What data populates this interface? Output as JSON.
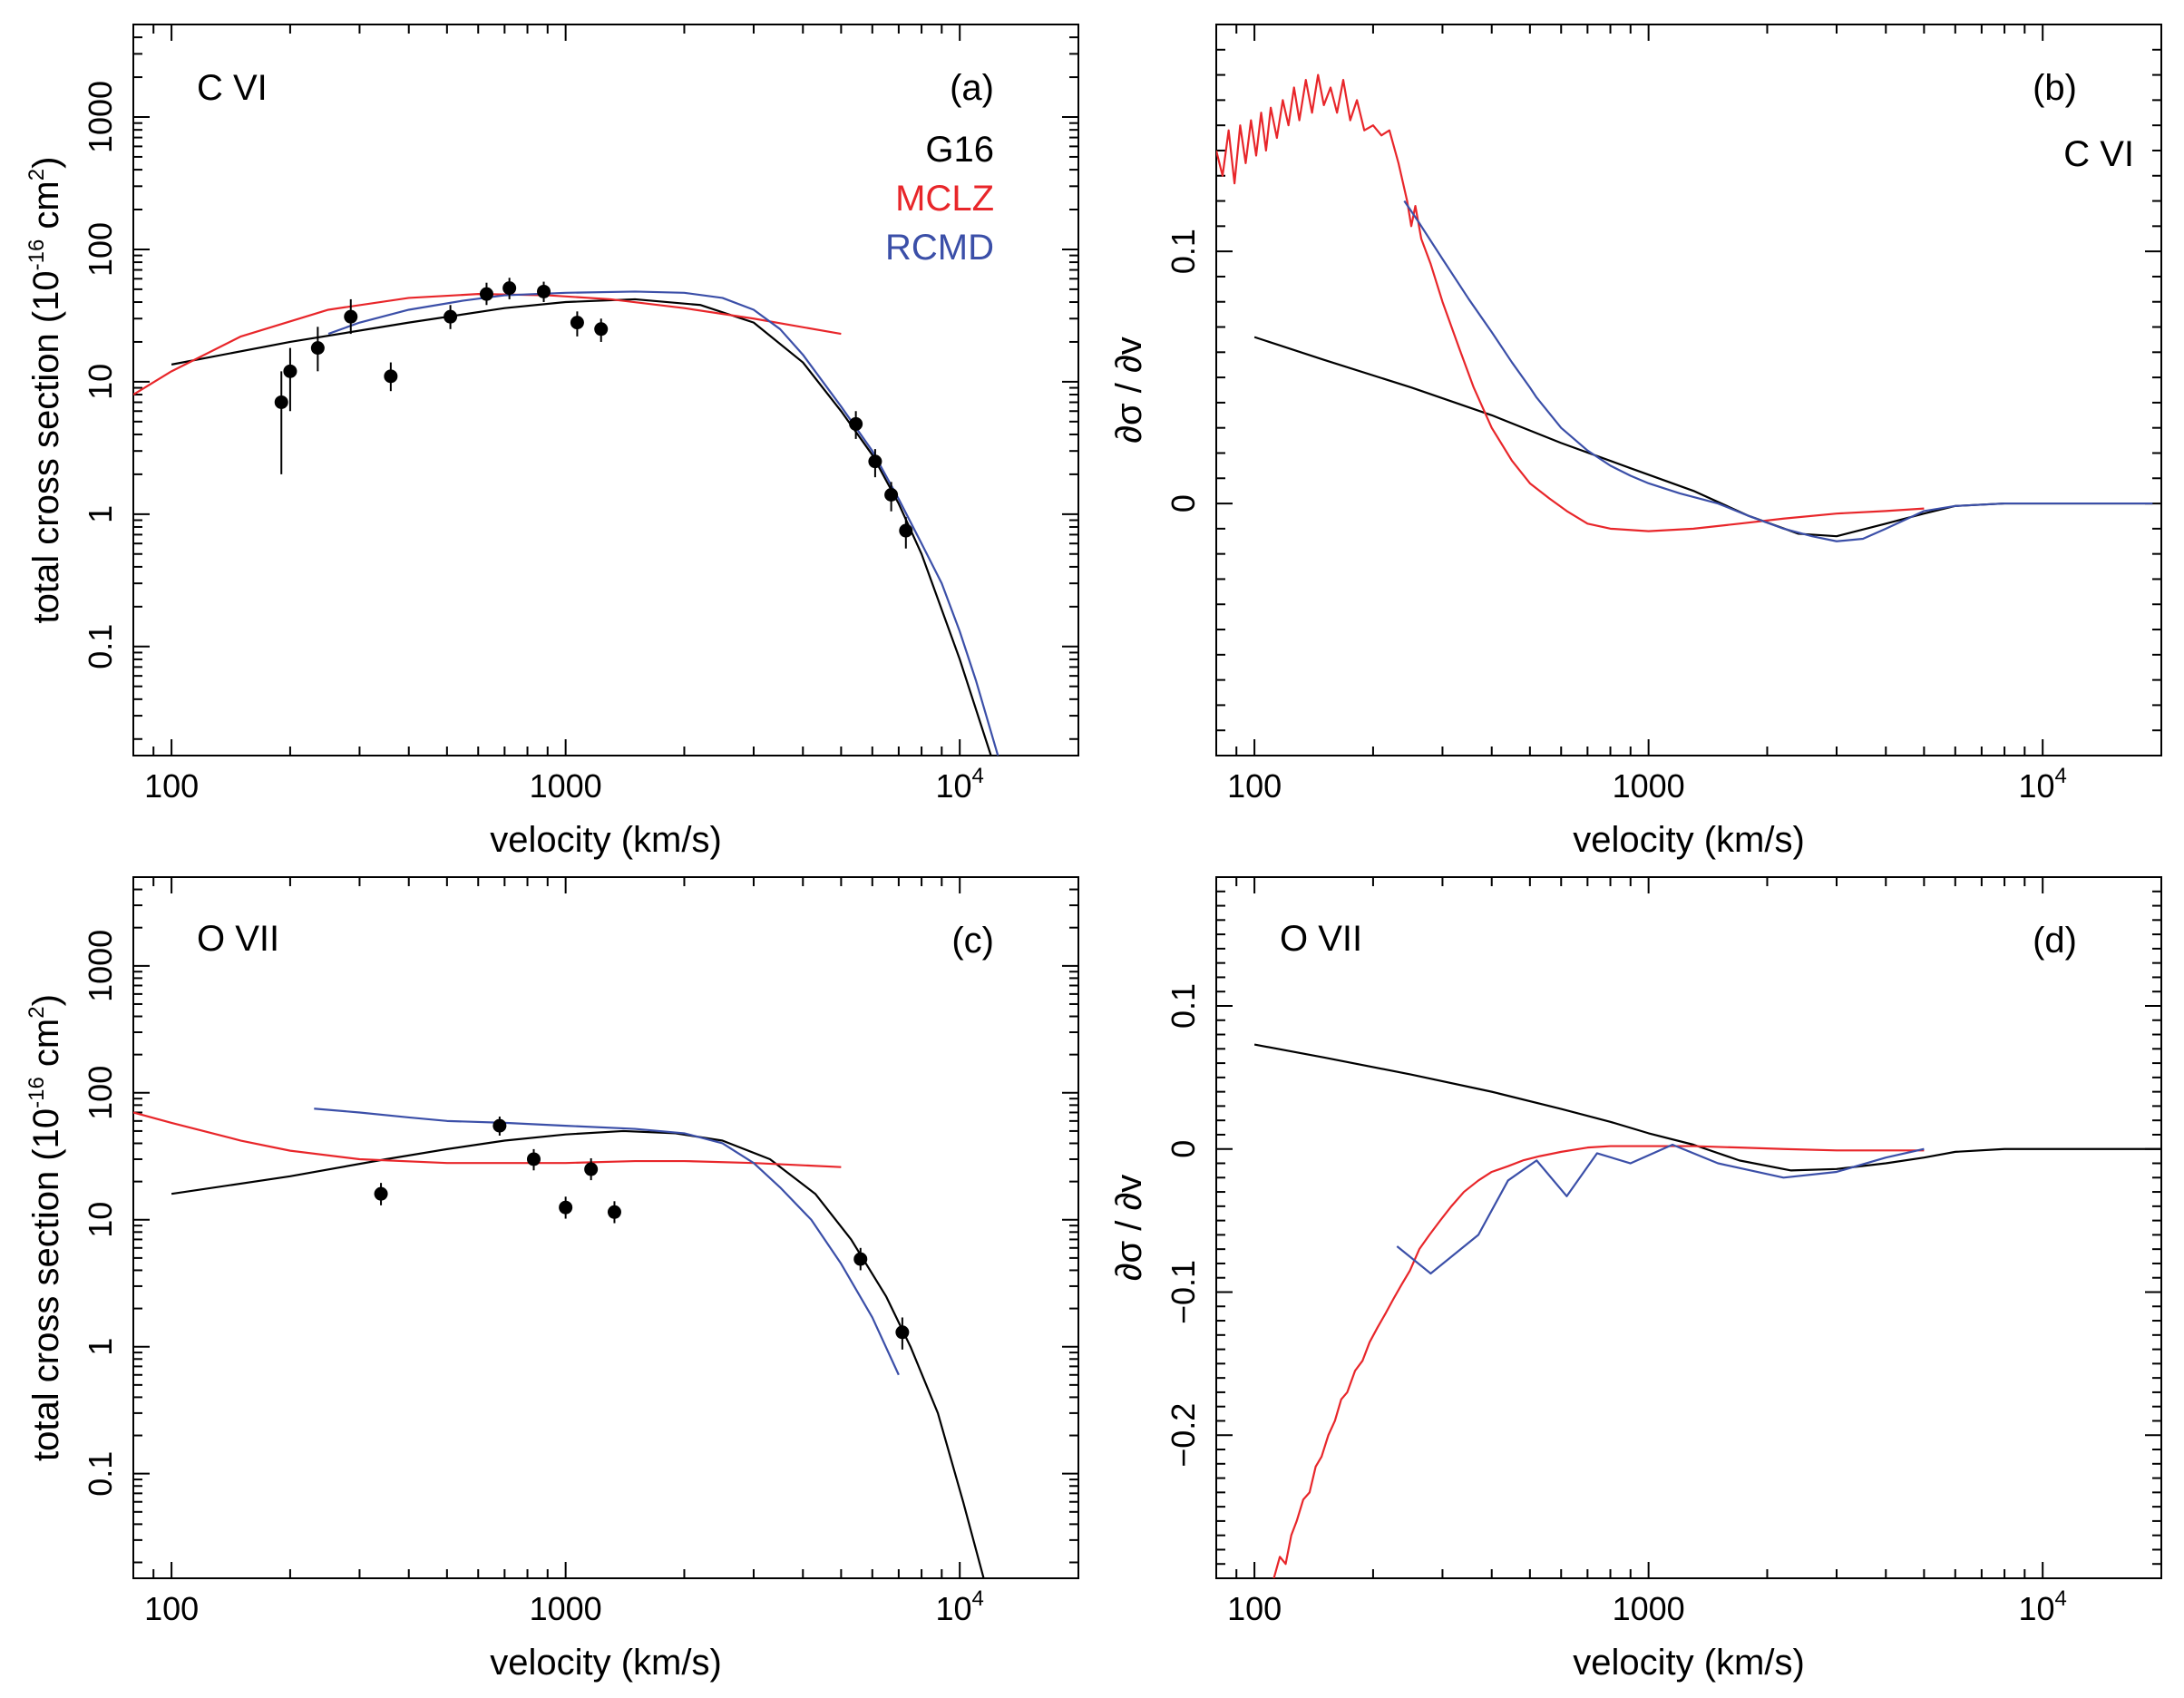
{
  "colors": {
    "G16": "#000000",
    "MCLZ": "#e8262a",
    "RCMD": "#3b4fa8",
    "axis": "#000000"
  },
  "chart_data": [
    {
      "id": "a",
      "type": "line",
      "panel_label": "(a)",
      "ion": "C VI",
      "xlabel": "velocity (km/s)",
      "ylabel_parts": [
        "total cross section (10",
        "-16",
        " cm",
        "2",
        ")"
      ],
      "xscale": "log",
      "yscale": "log",
      "xlim": [
        80,
        20000
      ],
      "ylim": [
        0.015,
        5000
      ],
      "xticks": [
        {
          "v": 100,
          "base": "100"
        },
        {
          "v": 1000,
          "base": "1000"
        },
        {
          "v": 10000,
          "base": "10",
          "exp": "4"
        }
      ],
      "yticks": [
        {
          "v": 0.1,
          "label": "0.1"
        },
        {
          "v": 1,
          "label": "1"
        },
        {
          "v": 10,
          "label": "10"
        },
        {
          "v": 100,
          "label": "100"
        },
        {
          "v": 1000,
          "label": "1000"
        }
      ],
      "legend": [
        {
          "name": "G16",
          "color": "#000000"
        },
        {
          "name": "MCLZ",
          "color": "#e8262a"
        },
        {
          "name": "RCMD",
          "color": "#3b4fa8"
        }
      ],
      "series": [
        {
          "name": "G16",
          "color": "#000000",
          "x": [
            100,
            200,
            400,
            700,
            1000,
            1500,
            2200,
            3000,
            4000,
            5000,
            6000,
            7000,
            8000,
            10000,
            12000
          ],
          "y": [
            13.5,
            20,
            28,
            36,
            40,
            42,
            38,
            28,
            14,
            6,
            2.8,
            1.2,
            0.5,
            0.08,
            0.015
          ]
        },
        {
          "name": "MCLZ",
          "color": "#e8262a",
          "x": [
            80,
            100,
            150,
            250,
            400,
            600,
            900,
            1300,
            2000,
            3000,
            5000
          ],
          "y": [
            8,
            12,
            22,
            35,
            43,
            46,
            45,
            42,
            36,
            30,
            23
          ]
        },
        {
          "name": "RCMD",
          "color": "#3b4fa8",
          "x": [
            250,
            300,
            400,
            550,
            700,
            1000,
            1500,
            2000,
            2500,
            3000,
            3500,
            4000,
            5000,
            6000,
            7000,
            8000,
            9000,
            10000,
            11000,
            12500
          ],
          "y": [
            23,
            28,
            35,
            41,
            45,
            47,
            48,
            47,
            43,
            35,
            25,
            16,
            6.5,
            3,
            1.3,
            0.6,
            0.3,
            0.13,
            0.055,
            0.015
          ]
        }
      ],
      "points": {
        "x": [
          190,
          200,
          235,
          285,
          360,
          510,
          630,
          720,
          880,
          1070,
          1230,
          5450,
          6100,
          6700,
          7300
        ],
        "y": [
          7,
          12,
          18,
          31,
          11,
          31,
          46,
          51,
          48,
          28,
          25,
          4.8,
          2.5,
          1.4,
          0.75
        ],
        "err_lo": [
          2,
          6,
          12,
          23,
          8.5,
          25,
          38,
          42,
          40,
          22,
          20,
          3.7,
          1.9,
          1.05,
          0.55
        ],
        "err_hi": [
          12,
          18,
          26,
          42,
          14,
          38,
          56,
          61,
          57,
          34,
          30,
          6,
          3.1,
          1.75,
          0.95
        ]
      }
    },
    {
      "id": "b",
      "type": "line",
      "panel_label": "(b)",
      "ion": "C VI",
      "xlabel": "velocity (km/s)",
      "ylabel": "∂σ / ∂v",
      "xscale": "log",
      "yscale": "linear",
      "xlim": [
        80,
        20000
      ],
      "ylim": [
        -0.1,
        0.19
      ],
      "xticks": [
        {
          "v": 100,
          "base": "100"
        },
        {
          "v": 1000,
          "base": "1000"
        },
        {
          "v": 10000,
          "base": "10",
          "exp": "4"
        }
      ],
      "yticks": [
        {
          "v": 0,
          "label": "0"
        },
        {
          "v": 0.1,
          "label": "0.1"
        }
      ],
      "series": [
        {
          "name": "G16",
          "color": "#000000",
          "x": [
            100,
            150,
            250,
            400,
            600,
            900,
            1300,
            1800,
            2400,
            3000,
            4000,
            5000,
            6000,
            8000,
            10000,
            15000,
            19000
          ],
          "y": [
            0.066,
            0.057,
            0.046,
            0.035,
            0.024,
            0.014,
            0.005,
            -0.005,
            -0.012,
            -0.013,
            -0.008,
            -0.004,
            -0.001,
            0,
            0,
            0,
            0
          ]
        },
        {
          "name": "MCLZ",
          "color": "#e8262a",
          "x": [
            80,
            83,
            86,
            89,
            92,
            95,
            98,
            101,
            104,
            107,
            110,
            114,
            118,
            122,
            126,
            130,
            135,
            140,
            145,
            150,
            156,
            162,
            168,
            175,
            182,
            190,
            200,
            210,
            220,
            232,
            244,
            250,
            256,
            265,
            280,
            300,
            330,
            360,
            400,
            450,
            500,
            560,
            620,
            700,
            800,
            1000,
            1300,
            1700,
            2200,
            3000,
            4000,
            5000
          ],
          "y": [
            0.14,
            0.13,
            0.148,
            0.127,
            0.15,
            0.135,
            0.152,
            0.138,
            0.155,
            0.14,
            0.157,
            0.145,
            0.16,
            0.15,
            0.165,
            0.152,
            0.168,
            0.155,
            0.17,
            0.158,
            0.165,
            0.155,
            0.168,
            0.152,
            0.16,
            0.148,
            0.15,
            0.146,
            0.148,
            0.135,
            0.12,
            0.11,
            0.118,
            0.105,
            0.095,
            0.08,
            0.062,
            0.046,
            0.03,
            0.017,
            0.008,
            0.002,
            -0.003,
            -0.008,
            -0.01,
            -0.011,
            -0.01,
            -0.008,
            -0.006,
            -0.004,
            -0.003,
            -0.002
          ]
        },
        {
          "name": "RCMD",
          "color": "#3b4fa8",
          "x": [
            240,
            260,
            300,
            350,
            400,
            450,
            500,
            520,
            600,
            700,
            800,
            900,
            1000,
            1200,
            1500,
            1800,
            2200,
            2600,
            3000,
            3500,
            4000,
            5000,
            6000,
            8000,
            10000,
            15000,
            19000
          ],
          "y": [
            0.12,
            0.112,
            0.097,
            0.081,
            0.068,
            0.056,
            0.046,
            0.042,
            0.03,
            0.021,
            0.015,
            0.011,
            0.008,
            0.004,
            0,
            -0.005,
            -0.01,
            -0.013,
            -0.015,
            -0.014,
            -0.01,
            -0.003,
            -0.001,
            0,
            0,
            0,
            0
          ]
        }
      ]
    },
    {
      "id": "c",
      "type": "line",
      "panel_label": "(c)",
      "ion": "O VII",
      "xlabel": "velocity (km/s)",
      "ylabel_parts": [
        "total cross section (10",
        "-16",
        " cm",
        "2",
        ")"
      ],
      "xscale": "log",
      "yscale": "log",
      "xlim": [
        80,
        20000
      ],
      "ylim": [
        0.015,
        5000
      ],
      "xticks": [
        {
          "v": 100,
          "base": "100"
        },
        {
          "v": 1000,
          "base": "1000"
        },
        {
          "v": 10000,
          "base": "10",
          "exp": "4"
        }
      ],
      "yticks": [
        {
          "v": 0.1,
          "label": "0.1"
        },
        {
          "v": 1,
          "label": "1"
        },
        {
          "v": 10,
          "label": "10"
        },
        {
          "v": 100,
          "label": "100"
        },
        {
          "v": 1000,
          "label": "1000"
        }
      ],
      "series": [
        {
          "name": "G16",
          "color": "#000000",
          "x": [
            100,
            200,
            350,
            500,
            700,
            1000,
            1400,
            1900,
            2500,
            3300,
            4300,
            5300,
            6500,
            7500,
            8800,
            10200,
            11500
          ],
          "y": [
            16,
            22,
            30,
            36,
            42,
            47,
            50,
            48,
            42,
            30,
            16,
            7,
            2.5,
            1,
            0.3,
            0.06,
            0.015
          ]
        },
        {
          "name": "MCLZ",
          "color": "#e8262a",
          "x": [
            80,
            100,
            150,
            200,
            300,
            500,
            700,
            1000,
            1500,
            2000,
            3000,
            5000
          ],
          "y": [
            70,
            58,
            42,
            35,
            30,
            28,
            28,
            28,
            29,
            29,
            28,
            26
          ]
        },
        {
          "name": "RCMD",
          "color": "#3b4fa8",
          "x": [
            230,
            300,
            400,
            500,
            700,
            1000,
            1500,
            2000,
            2500,
            3000,
            3500,
            4200,
            5000,
            6000,
            7000
          ],
          "y": [
            75,
            70,
            64,
            60,
            58,
            55,
            52,
            48,
            40,
            28,
            18,
            10,
            4.5,
            1.7,
            0.6
          ]
        }
      ],
      "points": {
        "x": [
          340,
          680,
          830,
          1000,
          1160,
          1330,
          5600,
          7150
        ],
        "y": [
          16,
          55,
          30,
          12.5,
          25,
          11.5,
          4.9,
          1.3
        ],
        "err_lo": [
          13,
          46,
          24.5,
          10.2,
          20.5,
          9.4,
          4,
          0.95
        ],
        "err_hi": [
          19.5,
          65,
          36,
          15.2,
          30.5,
          14,
          6,
          1.7
        ]
      }
    },
    {
      "id": "d",
      "type": "line",
      "panel_label": "(d)",
      "ion": "O VII",
      "xlabel": "velocity (km/s)",
      "ylabel": "∂σ / ∂v",
      "xscale": "log",
      "yscale": "linear",
      "xlim": [
        80,
        20000
      ],
      "ylim": [
        -0.3,
        0.19
      ],
      "xticks": [
        {
          "v": 100,
          "base": "100"
        },
        {
          "v": 1000,
          "base": "1000"
        },
        {
          "v": 10000,
          "base": "10",
          "exp": "4"
        }
      ],
      "yticks": [
        {
          "v": -0.2,
          "label": "−0.2"
        },
        {
          "v": -0.1,
          "label": "−0.1"
        },
        {
          "v": 0,
          "label": "0"
        },
        {
          "v": 0.1,
          "label": "0.1"
        }
      ],
      "series": [
        {
          "name": "G16",
          "color": "#000000",
          "x": [
            100,
            150,
            250,
            400,
            600,
            800,
            1000,
            1300,
            1700,
            2300,
            3000,
            4000,
            5000,
            6000,
            8000,
            10000,
            15000,
            20000
          ],
          "y": [
            0.073,
            0.064,
            0.052,
            0.04,
            0.028,
            0.019,
            0.011,
            0.003,
            -0.008,
            -0.015,
            -0.014,
            -0.01,
            -0.006,
            -0.002,
            0,
            0,
            0,
            0
          ]
        },
        {
          "name": "MCLZ",
          "color": "#e8262a",
          "x": [
            112,
            116,
            120,
            124,
            128,
            133,
            138,
            143,
            148,
            154,
            160,
            166,
            172,
            180,
            188,
            196,
            205,
            215,
            225,
            236,
            248,
            262,
            278,
            296,
            316,
            340,
            370,
            400,
            440,
            480,
            530,
            600,
            700,
            800,
            1000,
            1300,
            1700,
            2200,
            3000,
            4000,
            5000
          ],
          "y": [
            -0.3,
            -0.285,
            -0.29,
            -0.27,
            -0.26,
            -0.245,
            -0.24,
            -0.222,
            -0.215,
            -0.2,
            -0.19,
            -0.175,
            -0.17,
            -0.155,
            -0.148,
            -0.135,
            -0.125,
            -0.115,
            -0.105,
            -0.095,
            -0.085,
            -0.07,
            -0.06,
            -0.05,
            -0.04,
            -0.03,
            -0.022,
            -0.016,
            -0.012,
            -0.008,
            -0.005,
            -0.002,
            0.001,
            0.002,
            0.002,
            0.002,
            0.001,
            0,
            -0.001,
            -0.001,
            -0.001
          ]
        },
        {
          "name": "RCMD",
          "color": "#3b4fa8",
          "x": [
            230,
            280,
            370,
            440,
            520,
            620,
            740,
            900,
            1150,
            1500,
            2200,
            3000,
            4000,
            5000
          ],
          "y": [
            -0.068,
            -0.087,
            -0.06,
            -0.022,
            -0.008,
            -0.033,
            -0.003,
            -0.01,
            0.003,
            -0.01,
            -0.02,
            -0.016,
            -0.006,
            0
          ]
        }
      ]
    }
  ]
}
